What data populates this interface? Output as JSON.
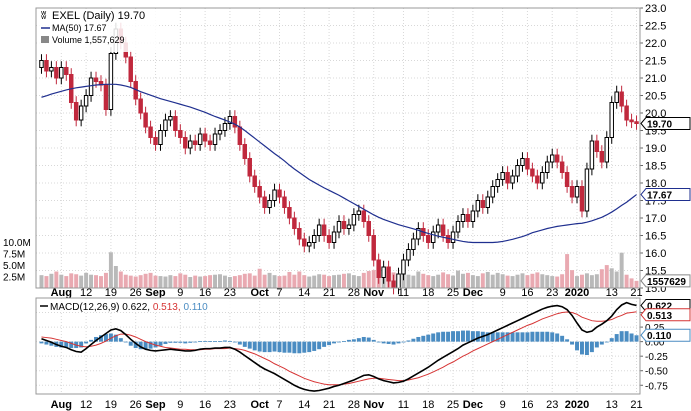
{
  "colors": {
    "up": "#000000",
    "down": "#c0283d",
    "ma": "#1f2f8f",
    "vol_up": "#b9b9b9",
    "vol_down": "#e9a9b1",
    "macd_line": "#000000",
    "signal_line": "#d63434",
    "histogram": "#4a8cc2",
    "grid": "#d8d8d8"
  },
  "legend": {
    "symbol": "EXEL (Daily) 19.70",
    "ma": "MA(50) 17.67",
    "volume": "Volume 1,557,629"
  },
  "macd_legend": {
    "label": "MACD(12,26,9)",
    "macd": "0.622,",
    "signal": "0.513,",
    "hist": "0.110"
  },
  "chart_data": [
    {
      "type": "candlestick",
      "title": "EXEL (Daily) 19.70",
      "ylim": [
        15,
        23
      ],
      "y_ticks": [
        "15.0",
        "15.5",
        "16.0",
        "16.5",
        "17.0",
        "17.5",
        "18.0",
        "18.5",
        "19.0",
        "19.5",
        "20.0",
        "20.5",
        "21.0",
        "21.5",
        "22.0",
        "22.5",
        "23.0"
      ],
      "x_labels": [
        {
          "label": "Aug",
          "i": 4
        },
        {
          "label": "12",
          "i": 9
        },
        {
          "label": "19",
          "i": 14
        },
        {
          "label": "26",
          "i": 19
        },
        {
          "label": "Sep",
          "i": 23
        },
        {
          "label": "9",
          "i": 28
        },
        {
          "label": "16",
          "i": 33
        },
        {
          "label": "23",
          "i": 38
        },
        {
          "label": "Oct",
          "i": 44
        },
        {
          "label": "7",
          "i": 48
        },
        {
          "label": "14",
          "i": 53
        },
        {
          "label": "21",
          "i": 58
        },
        {
          "label": "28",
          "i": 63
        },
        {
          "label": "Nov",
          "i": 67
        },
        {
          "label": "11",
          "i": 73
        },
        {
          "label": "18",
          "i": 78
        },
        {
          "label": "25",
          "i": 83
        },
        {
          "label": "Dec",
          "i": 87
        },
        {
          "label": "9",
          "i": 93
        },
        {
          "label": "16",
          "i": 98
        },
        {
          "label": "23",
          "i": 103
        },
        {
          "label": "2020",
          "i": 108
        },
        {
          "label": "13",
          "i": 115
        },
        {
          "label": "21",
          "i": 120
        }
      ],
      "close": [
        21.5,
        21.2,
        21.3,
        21.0,
        21.3,
        21.1,
        20.3,
        19.8,
        20.2,
        20.5,
        21.0,
        20.9,
        20.8,
        20.1,
        21.7,
        22.4,
        22.0,
        21.6,
        20.9,
        20.4,
        20.0,
        19.6,
        19.3,
        19.1,
        19.5,
        19.8,
        19.9,
        19.5,
        19.3,
        19.0,
        19.2,
        19.1,
        19.4,
        19.2,
        19.1,
        19.4,
        19.5,
        19.7,
        19.9,
        19.6,
        19.1,
        18.7,
        18.2,
        17.9,
        17.6,
        17.3,
        17.5,
        17.8,
        17.6,
        17.3,
        17.0,
        16.7,
        16.4,
        16.2,
        16.3,
        16.5,
        16.8,
        16.5,
        16.3,
        16.6,
        16.9,
        16.7,
        16.8,
        17.1,
        17.2,
        16.9,
        16.5,
        15.8,
        15.3,
        15.6,
        15.2,
        15.0,
        15.4,
        15.8,
        16.1,
        16.4,
        16.7,
        16.5,
        16.3,
        16.6,
        16.8,
        16.5,
        16.3,
        16.6,
        16.9,
        17.1,
        16.9,
        17.2,
        17.5,
        17.3,
        17.6,
        17.9,
        18.1,
        18.3,
        18.0,
        18.2,
        18.5,
        18.7,
        18.4,
        18.2,
        18.0,
        18.3,
        18.6,
        18.8,
        18.6,
        18.3,
        17.9,
        17.6,
        17.9,
        17.2,
        18.4,
        19.2,
        18.9,
        18.6,
        19.3,
        20.3,
        20.6,
        20.2,
        19.8,
        19.75,
        19.7
      ],
      "ma50": [
        20.45,
        20.49,
        20.54,
        20.58,
        20.62,
        20.66,
        20.69,
        20.72,
        20.74,
        20.76,
        20.78,
        20.8,
        20.81,
        20.82,
        20.82,
        20.82,
        20.8,
        20.77,
        20.73,
        20.67,
        20.61,
        20.56,
        20.51,
        20.46,
        20.41,
        20.37,
        20.33,
        20.29,
        20.25,
        20.21,
        20.17,
        20.12,
        20.07,
        20.02,
        19.96,
        19.9,
        19.85,
        19.8,
        19.74,
        19.68,
        19.6,
        19.5,
        19.39,
        19.28,
        19.17,
        19.06,
        18.95,
        18.84,
        18.74,
        18.63,
        18.51,
        18.4,
        18.3,
        18.2,
        18.1,
        18.02,
        17.94,
        17.86,
        17.79,
        17.72,
        17.65,
        17.57,
        17.49,
        17.41,
        17.33,
        17.25,
        17.17,
        17.09,
        17.02,
        16.96,
        16.91,
        16.86,
        16.81,
        16.77,
        16.73,
        16.69,
        16.65,
        16.6,
        16.56,
        16.52,
        16.48,
        16.45,
        16.42,
        16.39,
        16.36,
        16.33,
        16.31,
        16.3,
        16.3,
        16.3,
        16.3,
        16.3,
        16.31,
        16.33,
        16.36,
        16.39,
        16.43,
        16.47,
        16.52,
        16.58,
        16.62,
        16.66,
        16.7,
        16.73,
        16.76,
        16.78,
        16.8,
        16.82,
        16.84,
        16.85,
        16.88,
        16.92,
        16.97,
        17.02,
        17.09,
        17.17,
        17.26,
        17.36,
        17.45,
        17.56,
        17.67
      ]
    },
    {
      "type": "bar",
      "title": "Volume 1,557,629",
      "ylim": [
        0,
        12000000
      ],
      "y_ticks": [
        "2.5M",
        "5.0M",
        "7.5M",
        "10.0M"
      ],
      "values": [
        2.8,
        2.6,
        3.1,
        3.6,
        2.9,
        2.6,
        3.2,
        3.0,
        2.7,
        3.3,
        2.9,
        2.8,
        2.6,
        3.3,
        7.8,
        4.8,
        3.6,
        2.9,
        2.7,
        2.5,
        2.8,
        3.1,
        3.3,
        2.7,
        2.6,
        2.5,
        2.8,
        2.6,
        3.2,
        2.9,
        2.4,
        2.7,
        2.5,
        2.6,
        2.8,
        2.9,
        3.0,
        2.7,
        2.4,
        2.6,
        2.8,
        3.1,
        3.2,
        2.7,
        4.2,
        2.9,
        3.3,
        2.8,
        2.6,
        2.7,
        3.5,
        2.9,
        3.6,
        2.8,
        2.5,
        2.7,
        3.0,
        2.9,
        2.6,
        2.8,
        2.9,
        3.1,
        3.2,
        2.8,
        2.6,
        3.3,
        3.7,
        3.9,
        5.0,
        3.8,
        3.3,
        3.4,
        3.0,
        3.2,
        2.9,
        2.7,
        3.6,
        3.1,
        2.8,
        2.6,
        2.9,
        3.4,
        3.0,
        2.7,
        3.8,
        3.1,
        3.3,
        2.8,
        2.6,
        3.2,
        3.5,
        2.9,
        3.3,
        3.0,
        2.7,
        2.6,
        2.9,
        3.2,
        2.8,
        3.1,
        3.4,
        3.0,
        2.8,
        2.6,
        2.5,
        3.0,
        7.4,
        3.9,
        2.6,
        2.9,
        3.2,
        2.8,
        3.0,
        4.1,
        5.0,
        4.3,
        3.6,
        7.7,
        2.9,
        2.1,
        1.56
      ],
      "down_days": [
        1,
        3,
        5,
        6,
        7,
        11,
        12,
        13,
        16,
        17,
        18,
        19,
        20,
        21,
        22,
        23,
        27,
        28,
        29,
        31,
        33,
        34,
        39,
        40,
        41,
        42,
        43,
        44,
        45,
        48,
        49,
        50,
        51,
        52,
        53,
        57,
        58,
        61,
        65,
        66,
        67,
        68,
        70,
        71,
        77,
        78,
        81,
        82,
        86,
        89,
        94,
        98,
        99,
        100,
        104,
        105,
        106,
        107,
        109,
        113,
        114,
        118,
        119,
        120
      ],
      "last_value_label": "1557629"
    },
    {
      "type": "line",
      "title": "MACD(12,26,9)",
      "ylim": [
        -0.9,
        0.75
      ],
      "y_ticks": [
        "-0.75",
        "-0.50",
        "-0.25",
        "0.00",
        "0.25",
        "0.50"
      ],
      "macd": [
        0.05,
        0.02,
        -0.01,
        -0.05,
        -0.08,
        -0.1,
        -0.14,
        -0.17,
        -0.18,
        -0.12,
        -0.05,
        0.02,
        0.08,
        0.14,
        0.2,
        0.22,
        0.19,
        0.12,
        0.04,
        -0.03,
        -0.09,
        -0.13,
        -0.15,
        -0.16,
        -0.15,
        -0.14,
        -0.13,
        -0.14,
        -0.15,
        -0.16,
        -0.16,
        -0.15,
        -0.13,
        -0.12,
        -0.12,
        -0.11,
        -0.11,
        -0.1,
        -0.1,
        -0.13,
        -0.18,
        -0.24,
        -0.3,
        -0.36,
        -0.42,
        -0.47,
        -0.51,
        -0.55,
        -0.6,
        -0.65,
        -0.7,
        -0.75,
        -0.79,
        -0.82,
        -0.84,
        -0.85,
        -0.84,
        -0.82,
        -0.8,
        -0.77,
        -0.75,
        -0.72,
        -0.69,
        -0.66,
        -0.62,
        -0.58,
        -0.57,
        -0.6,
        -0.64,
        -0.67,
        -0.69,
        -0.71,
        -0.7,
        -0.68,
        -0.64,
        -0.59,
        -0.54,
        -0.49,
        -0.44,
        -0.38,
        -0.32,
        -0.27,
        -0.22,
        -0.17,
        -0.12,
        -0.06,
        -0.02,
        0.02,
        0.06,
        0.09,
        0.12,
        0.16,
        0.2,
        0.24,
        0.28,
        0.32,
        0.36,
        0.4,
        0.44,
        0.48,
        0.52,
        0.56,
        0.59,
        0.61,
        0.62,
        0.6,
        0.55,
        0.45,
        0.32,
        0.2,
        0.16,
        0.18,
        0.25,
        0.3,
        0.36,
        0.44,
        0.55,
        0.63,
        0.67,
        0.64,
        0.622
      ],
      "signal": [
        0.08,
        0.07,
        0.06,
        0.04,
        0.02,
        0.0,
        -0.03,
        -0.06,
        -0.08,
        -0.09,
        -0.08,
        -0.06,
        -0.03,
        0.01,
        0.06,
        0.1,
        0.13,
        0.13,
        0.11,
        0.08,
        0.04,
        0.0,
        -0.03,
        -0.06,
        -0.08,
        -0.1,
        -0.11,
        -0.12,
        -0.13,
        -0.13,
        -0.14,
        -0.14,
        -0.14,
        -0.13,
        -0.13,
        -0.12,
        -0.12,
        -0.12,
        -0.11,
        -0.12,
        -0.13,
        -0.15,
        -0.18,
        -0.21,
        -0.25,
        -0.29,
        -0.33,
        -0.38,
        -0.42,
        -0.46,
        -0.51,
        -0.55,
        -0.59,
        -0.63,
        -0.66,
        -0.69,
        -0.71,
        -0.73,
        -0.74,
        -0.74,
        -0.74,
        -0.73,
        -0.72,
        -0.7,
        -0.68,
        -0.66,
        -0.64,
        -0.63,
        -0.63,
        -0.64,
        -0.65,
        -0.66,
        -0.67,
        -0.67,
        -0.66,
        -0.64,
        -0.62,
        -0.59,
        -0.56,
        -0.52,
        -0.48,
        -0.44,
        -0.39,
        -0.35,
        -0.3,
        -0.25,
        -0.21,
        -0.16,
        -0.12,
        -0.08,
        -0.04,
        0.0,
        0.04,
        0.08,
        0.12,
        0.16,
        0.2,
        0.24,
        0.28,
        0.31,
        0.35,
        0.39,
        0.42,
        0.45,
        0.48,
        0.5,
        0.51,
        0.5,
        0.47,
        0.42,
        0.39,
        0.36,
        0.35,
        0.35,
        0.36,
        0.38,
        0.42,
        0.45,
        0.49,
        0.5,
        0.513
      ]
    }
  ]
}
